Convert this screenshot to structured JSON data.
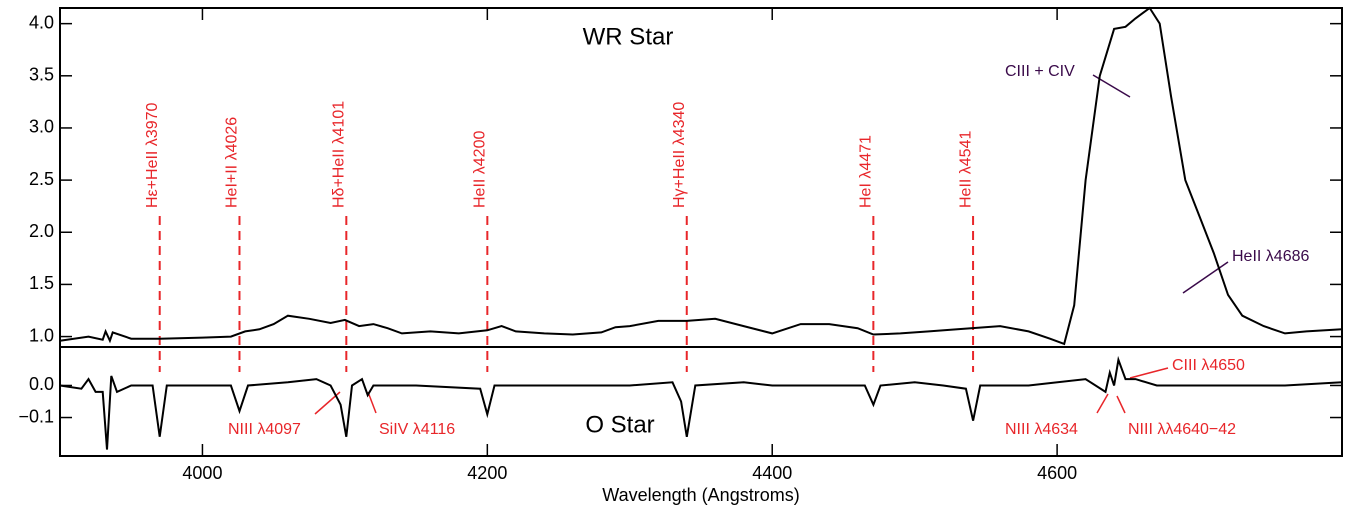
{
  "chart_data": [
    {
      "type": "line",
      "label": "WR Star",
      "color": "#000000",
      "xlim": [
        3900,
        4800
      ],
      "ylim": [
        0.9,
        4.15
      ],
      "yticks": [
        {
          "value": 1,
          "label": "1.0"
        },
        1.5,
        {
          "value": 2,
          "label": "2.0"
        },
        2.5,
        {
          "value": 3,
          "label": "3.0"
        },
        3.5,
        {
          "value": 4,
          "label": "4.0"
        }
      ],
      "x": [
        3900,
        3920,
        3930,
        3932,
        3935,
        3937,
        3950,
        3970,
        4000,
        4020,
        4030,
        4040,
        4050,
        4060,
        4075,
        4090,
        4100,
        4110,
        4120,
        4130,
        4140,
        4160,
        4180,
        4200,
        4210,
        4220,
        4240,
        4260,
        4280,
        4290,
        4300,
        4320,
        4340,
        4360,
        4380,
        4400,
        4420,
        4440,
        4460,
        4471,
        4490,
        4510,
        4530,
        4560,
        4580,
        4595,
        4605,
        4612,
        4620,
        4630,
        4640,
        4648,
        4655,
        4665,
        4672,
        4680,
        4690,
        4700,
        4710,
        4720,
        4730,
        4745,
        4760,
        4775,
        4800
      ],
      "values": [
        0.96,
        1.0,
        0.97,
        1.05,
        0.96,
        1.04,
        0.98,
        0.98,
        0.99,
        1.0,
        1.05,
        1.07,
        1.12,
        1.2,
        1.17,
        1.13,
        1.16,
        1.1,
        1.12,
        1.08,
        1.03,
        1.05,
        1.03,
        1.06,
        1.1,
        1.05,
        1.03,
        1.02,
        1.04,
        1.09,
        1.1,
        1.15,
        1.15,
        1.17,
        1.1,
        1.03,
        1.12,
        1.12,
        1.08,
        1.02,
        1.03,
        1.05,
        1.07,
        1.1,
        1.05,
        0.98,
        0.93,
        1.3,
        2.5,
        3.5,
        3.95,
        3.97,
        4.05,
        4.15,
        4.0,
        3.3,
        2.5,
        2.15,
        1.8,
        1.4,
        1.2,
        1.1,
        1.03,
        1.05,
        1.07
      ],
      "annotations": [
        {
          "text": "Hε+HeII λ3970",
          "x": 3970,
          "color": "#e8262a"
        },
        {
          "text": "HeI+II λ4026",
          "x": 4026,
          "color": "#e8262a"
        },
        {
          "text": "Hδ+HeII λ4101",
          "x": 4101,
          "color": "#e8262a"
        },
        {
          "text": "HeII λ4200",
          "x": 4200,
          "color": "#e8262a"
        },
        {
          "text": "Hγ+HeII λ4340",
          "x": 4340,
          "color": "#e8262a"
        },
        {
          "text": "HeI λ4471",
          "x": 4471,
          "color": "#e8262a"
        },
        {
          "text": "HeII λ4541",
          "x": 4541,
          "color": "#e8262a"
        },
        {
          "text": "CIII + CIV",
          "color": "#3a0a4a"
        },
        {
          "text": "HeII λ4686",
          "color": "#3a0a4a"
        }
      ]
    },
    {
      "type": "line",
      "label": "O Star",
      "color": "#000000",
      "x_label": "Wavelength (Angstroms)",
      "xlim": [
        3900,
        4800
      ],
      "ylim": [
        -0.22,
        0.12
      ],
      "xticks": [
        4000,
        4200,
        4400,
        4600
      ],
      "yticks": [
        {
          "value": -0.1,
          "label": "−0.1"
        },
        {
          "value": 0,
          "label": "0.0"
        }
      ],
      "x": [
        3900,
        3915,
        3920,
        3925,
        3930,
        3933,
        3936,
        3940,
        3950,
        3965,
        3970,
        3975,
        4000,
        4020,
        4026,
        4032,
        4060,
        4080,
        4090,
        4097,
        4101,
        4105,
        4112,
        4116,
        4120,
        4150,
        4195,
        4200,
        4205,
        4230,
        4300,
        4330,
        4336,
        4340,
        4346,
        4380,
        4400,
        4465,
        4471,
        4476,
        4500,
        4520,
        4536,
        4541,
        4546,
        4580,
        4620,
        4634,
        4637,
        4640,
        4643,
        4648,
        4655,
        4670,
        4700,
        4760,
        4800
      ],
      "values": [
        0.0,
        -0.01,
        0.02,
        -0.02,
        -0.02,
        -0.2,
        0.03,
        -0.02,
        0.0,
        0.0,
        -0.16,
        0.0,
        0.0,
        0.0,
        -0.08,
        0.0,
        0.01,
        0.02,
        0.0,
        -0.06,
        -0.16,
        0.0,
        0.02,
        -0.03,
        0.0,
        0.0,
        -0.01,
        -0.09,
        0.0,
        0.0,
        0.0,
        0.01,
        -0.05,
        -0.16,
        0.0,
        0.01,
        0.0,
        0.0,
        -0.06,
        0.0,
        0.01,
        0.0,
        -0.01,
        -0.11,
        0.0,
        0.0,
        0.02,
        -0.02,
        0.04,
        0.0,
        0.08,
        0.02,
        0.02,
        0.0,
        0.0,
        0.0,
        0.01
      ],
      "annotations": [
        {
          "text": "NIII λ4097",
          "color": "#e8262a"
        },
        {
          "text": "SiIV λ4116",
          "color": "#e8262a"
        },
        {
          "text": "NIII λ4634",
          "color": "#e8262a"
        },
        {
          "text": "NIII λλ4640−42",
          "color": "#e8262a"
        },
        {
          "text": "CIII λ4650",
          "color": "#e8262a"
        }
      ]
    }
  ]
}
